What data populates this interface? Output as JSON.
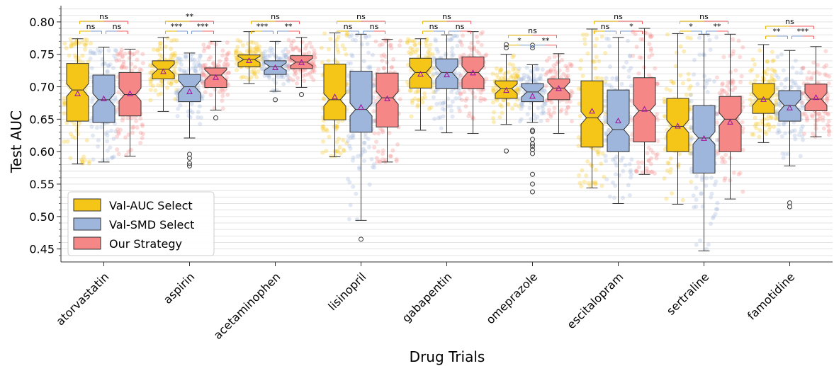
{
  "chart_data": {
    "type": "box",
    "xlabel": "Drug Trials",
    "ylabel": "Test AUC",
    "ylim": [
      0.43,
      0.825
    ],
    "yticks": [
      0.45,
      0.5,
      0.55,
      0.6,
      0.65,
      0.7,
      0.75,
      0.8
    ],
    "ytick_labels": [
      "0.45",
      "0.50",
      "0.55",
      "0.60",
      "0.65",
      "0.70",
      "0.75",
      "0.80"
    ],
    "grid": "horizontal minor lines",
    "legend_position": "lower-left",
    "categories": [
      "atorvastatin",
      "aspirin",
      "acetaminophen",
      "lisinopril",
      "gabapentin",
      "omeprazole",
      "escitalopram",
      "sertraline",
      "famotidine"
    ],
    "series": [
      {
        "name": "Val-AUC Select",
        "color": "#f5c518",
        "boxes": [
          {
            "whislo": 0.581,
            "q1": 0.647,
            "med": 0.695,
            "q3": 0.736,
            "whishi": 0.774,
            "mean": 0.689,
            "fliers": []
          },
          {
            "whislo": 0.662,
            "q1": 0.712,
            "med": 0.727,
            "q3": 0.74,
            "whishi": 0.776,
            "mean": 0.723,
            "fliers": []
          },
          {
            "whislo": 0.705,
            "q1": 0.731,
            "med": 0.742,
            "q3": 0.749,
            "whishi": 0.785,
            "mean": 0.74,
            "fliers": []
          },
          {
            "whislo": 0.592,
            "q1": 0.649,
            "med": 0.68,
            "q3": 0.735,
            "whishi": 0.783,
            "mean": 0.684,
            "fliers": []
          },
          {
            "whislo": 0.633,
            "q1": 0.698,
            "med": 0.722,
            "q3": 0.744,
            "whishi": 0.774,
            "mean": 0.719,
            "fliers": []
          },
          {
            "whislo": 0.642,
            "q1": 0.682,
            "med": 0.697,
            "q3": 0.709,
            "whishi": 0.75,
            "mean": 0.694,
            "fliers": [
              0.601,
              0.76,
              0.765
            ]
          },
          {
            "whislo": 0.544,
            "q1": 0.607,
            "med": 0.652,
            "q3": 0.709,
            "whishi": 0.789,
            "mean": 0.662,
            "fliers": []
          },
          {
            "whislo": 0.519,
            "q1": 0.6,
            "med": 0.639,
            "q3": 0.682,
            "whishi": 0.782,
            "mean": 0.639,
            "fliers": []
          },
          {
            "whislo": 0.614,
            "q1": 0.659,
            "med": 0.681,
            "q3": 0.705,
            "whishi": 0.765,
            "mean": 0.68,
            "fliers": []
          }
        ]
      },
      {
        "name": "Val-SMD Select",
        "color": "#9fb6dc",
        "boxes": [
          {
            "whislo": 0.584,
            "q1": 0.645,
            "med": 0.68,
            "q3": 0.718,
            "whishi": 0.761,
            "mean": 0.681,
            "fliers": []
          },
          {
            "whislo": 0.621,
            "q1": 0.677,
            "med": 0.7,
            "q3": 0.719,
            "whishi": 0.752,
            "mean": 0.692,
            "fliers": [
              0.578,
              0.582,
              0.59,
              0.596
            ]
          },
          {
            "whislo": 0.693,
            "q1": 0.719,
            "med": 0.731,
            "q3": 0.74,
            "whishi": 0.77,
            "mean": 0.729,
            "fliers": [
              0.68
            ]
          },
          {
            "whislo": 0.494,
            "q1": 0.63,
            "med": 0.665,
            "q3": 0.724,
            "whishi": 0.781,
            "mean": 0.668,
            "fliers": [
              0.465
            ]
          },
          {
            "whislo": 0.629,
            "q1": 0.697,
            "med": 0.722,
            "q3": 0.743,
            "whishi": 0.78,
            "mean": 0.718,
            "fliers": []
          },
          {
            "whislo": 0.645,
            "q1": 0.677,
            "med": 0.692,
            "q3": 0.705,
            "whishi": 0.734,
            "mean": 0.685,
            "fliers": [
              0.538,
              0.55,
              0.565,
              0.597,
              0.603,
              0.608,
              0.612,
              0.619,
              0.631,
              0.633,
              0.76,
              0.764
            ]
          },
          {
            "whislo": 0.52,
            "q1": 0.6,
            "med": 0.634,
            "q3": 0.695,
            "whishi": 0.776,
            "mean": 0.647,
            "fliers": []
          },
          {
            "whislo": 0.447,
            "q1": 0.567,
            "med": 0.621,
            "q3": 0.671,
            "whishi": 0.781,
            "mean": 0.62,
            "fliers": []
          },
          {
            "whislo": 0.578,
            "q1": 0.647,
            "med": 0.671,
            "q3": 0.694,
            "whishi": 0.756,
            "mean": 0.667,
            "fliers": [
              0.515,
              0.521
            ]
          }
        ]
      },
      {
        "name": "Our Strategy",
        "color": "#f58787",
        "boxes": [
          {
            "whislo": 0.593,
            "q1": 0.655,
            "med": 0.688,
            "q3": 0.722,
            "whishi": 0.758,
            "mean": 0.689,
            "fliers": []
          },
          {
            "whislo": 0.664,
            "q1": 0.699,
            "med": 0.718,
            "q3": 0.729,
            "whishi": 0.77,
            "mean": 0.714,
            "fliers": [
              0.652
            ]
          },
          {
            "whislo": 0.699,
            "q1": 0.728,
            "med": 0.738,
            "q3": 0.748,
            "whishi": 0.776,
            "mean": 0.737,
            "fliers": [
              0.688
            ]
          },
          {
            "whislo": 0.584,
            "q1": 0.638,
            "med": 0.683,
            "q3": 0.721,
            "whishi": 0.773,
            "mean": 0.681,
            "fliers": []
          },
          {
            "whislo": 0.628,
            "q1": 0.697,
            "med": 0.722,
            "q3": 0.746,
            "whishi": 0.785,
            "mean": 0.721,
            "fliers": []
          },
          {
            "whislo": 0.628,
            "q1": 0.68,
            "med": 0.698,
            "q3": 0.712,
            "whishi": 0.751,
            "mean": 0.697,
            "fliers": []
          },
          {
            "whislo": 0.565,
            "q1": 0.615,
            "med": 0.663,
            "q3": 0.714,
            "whishi": 0.79,
            "mean": 0.665,
            "fliers": []
          },
          {
            "whislo": 0.527,
            "q1": 0.6,
            "med": 0.65,
            "q3": 0.685,
            "whishi": 0.781,
            "mean": 0.645,
            "fliers": []
          },
          {
            "whislo": 0.623,
            "q1": 0.663,
            "med": 0.681,
            "q3": 0.704,
            "whishi": 0.762,
            "mean": 0.683,
            "fliers": []
          }
        ]
      }
    ],
    "significance": [
      {
        "ab": "ns",
        "bc": "ns",
        "ac": "ns"
      },
      {
        "ab": "***",
        "bc": "***",
        "ac": "**"
      },
      {
        "ab": "***",
        "bc": "**",
        "ac": "ns"
      },
      {
        "ab": "ns",
        "bc": "ns",
        "ac": "ns"
      },
      {
        "ab": "ns",
        "bc": "ns",
        "ac": "ns"
      },
      {
        "ab": "*",
        "bc": "**",
        "ac": "ns"
      },
      {
        "ab": "ns",
        "bc": "*",
        "ac": "ns"
      },
      {
        "ab": "*",
        "bc": "**",
        "ac": "ns"
      },
      {
        "ab": "**",
        "bc": "***",
        "ac": "ns"
      }
    ]
  }
}
